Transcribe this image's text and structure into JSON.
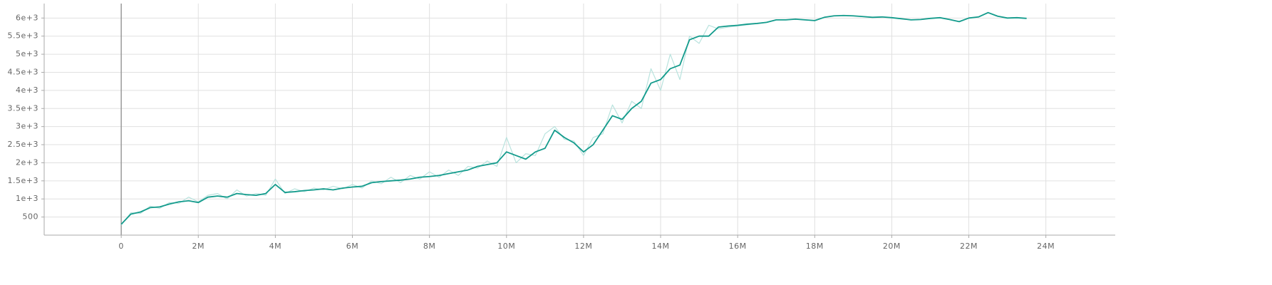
{
  "chart_data": {
    "type": "line",
    "x": [
      0,
      0.25,
      0.5,
      0.75,
      1,
      1.25,
      1.5,
      1.75,
      2,
      2.25,
      2.5,
      2.75,
      3,
      3.25,
      3.5,
      3.75,
      4,
      4.25,
      4.5,
      4.75,
      5,
      5.25,
      5.5,
      5.75,
      6,
      6.25,
      6.5,
      6.75,
      7,
      7.25,
      7.5,
      7.75,
      8,
      8.25,
      8.5,
      8.75,
      9,
      9.25,
      9.5,
      9.75,
      10,
      10.25,
      10.5,
      10.75,
      11,
      11.25,
      11.5,
      11.75,
      12,
      12.25,
      12.5,
      12.75,
      13,
      13.25,
      13.5,
      13.75,
      14,
      14.25,
      14.5,
      14.75,
      15,
      15.25,
      15.5,
      15.75,
      16,
      16.25,
      16.5,
      16.75,
      17,
      17.25,
      17.5,
      17.75,
      18,
      18.25,
      18.5,
      18.75,
      19,
      19.25,
      19.5,
      19.75,
      20,
      20.25,
      20.5,
      20.75,
      21,
      21.25,
      21.5,
      21.75,
      22,
      22.25,
      22.5,
      22.75,
      23,
      23.25,
      23.5
    ],
    "series": [
      {
        "color": "#b9e3de",
        "values": [
          280,
          620,
          600,
          800,
          740,
          900,
          880,
          1050,
          920,
          1100,
          1150,
          1000,
          1250,
          1080,
          1150,
          1100,
          1550,
          1150,
          1280,
          1200,
          1300,
          1250,
          1350,
          1280,
          1400,
          1300,
          1500,
          1420,
          1600,
          1450,
          1650,
          1550,
          1750,
          1600,
          1800,
          1650,
          1900,
          1850,
          2050,
          1900,
          2700,
          2000,
          2250,
          2200,
          2800,
          3000,
          2650,
          2600,
          2200,
          2700,
          2800,
          3600,
          3100,
          3700,
          3500,
          4600,
          4000,
          5000,
          4300,
          5500,
          5300,
          5800,
          5700,
          5750,
          5780,
          5810,
          5850,
          5880,
          5950,
          5950,
          5970,
          5950,
          5930,
          6020,
          6060,
          6070,
          6060,
          6040,
          6020,
          6030,
          6010,
          5980,
          5950,
          5960,
          5990,
          6010,
          5960,
          5900,
          6000,
          6030,
          6150,
          6050,
          6000,
          6010,
          5990
        ]
      },
      {
        "color": "#139b8c",
        "values": [
          300,
          580,
          640,
          760,
          780,
          860,
          920,
          950,
          900,
          1050,
          1080,
          1050,
          1150,
          1120,
          1100,
          1150,
          1400,
          1180,
          1200,
          1230,
          1250,
          1280,
          1250,
          1300,
          1330,
          1350,
          1450,
          1480,
          1500,
          1520,
          1550,
          1600,
          1620,
          1650,
          1700,
          1750,
          1800,
          1900,
          1950,
          2000,
          2300,
          2200,
          2100,
          2300,
          2400,
          2900,
          2700,
          2550,
          2300,
          2500,
          2900,
          3300,
          3200,
          3500,
          3700,
          4200,
          4300,
          4600,
          4700,
          5400,
          5500,
          5500,
          5750,
          5780,
          5800,
          5830,
          5850,
          5880,
          5950,
          5950,
          5970,
          5950,
          5930,
          6020,
          6060,
          6070,
          6060,
          6040,
          6020,
          6030,
          6010,
          5980,
          5950,
          5960,
          5990,
          6010,
          5960,
          5900,
          6000,
          6030,
          6150,
          6050,
          6000,
          6010,
          5990
        ]
      }
    ],
    "xlim": [
      -2,
      25.8
    ],
    "xticks": [
      0,
      {
        "value": 2,
        "label": "2M"
      },
      {
        "value": 4,
        "label": "4M"
      },
      {
        "value": 6,
        "label": "6M"
      },
      {
        "value": 8,
        "label": "8M"
      },
      {
        "value": 10,
        "label": "10M"
      },
      {
        "value": 12,
        "label": "12M"
      },
      {
        "value": 14,
        "label": "14M"
      },
      {
        "value": 16,
        "label": "16M"
      },
      {
        "value": 18,
        "label": "18M"
      },
      {
        "value": 20,
        "label": "20M"
      },
      {
        "value": 22,
        "label": "22M"
      },
      {
        "value": 24,
        "label": "24M"
      }
    ],
    "ylim": [
      0,
      6400
    ],
    "yticks": [
      500,
      {
        "value": 1000,
        "label": "1e+3"
      },
      {
        "value": 1500,
        "label": "1.5e+3"
      },
      {
        "value": 2000,
        "label": "2e+3"
      },
      {
        "value": 2500,
        "label": "2.5e+3"
      },
      {
        "value": 3000,
        "label": "3e+3"
      },
      {
        "value": 3500,
        "label": "3.5e+3"
      },
      {
        "value": 4000,
        "label": "4e+3"
      },
      {
        "value": 4500,
        "label": "4.5e+3"
      },
      {
        "value": 5000,
        "label": "5e+3"
      },
      {
        "value": 5500,
        "label": "5.5e+3"
      },
      {
        "value": 6000,
        "label": "6e+3"
      }
    ],
    "grid": true
  }
}
